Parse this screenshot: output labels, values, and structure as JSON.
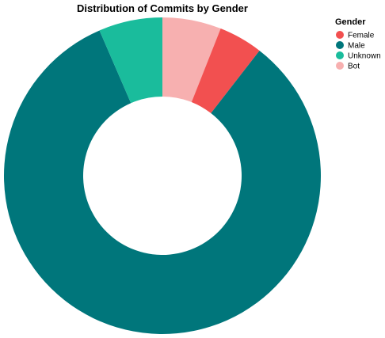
{
  "chart_data": {
    "type": "pie",
    "donut": true,
    "title": "Distribution of Commits by Gender",
    "legend": {
      "title": "Gender",
      "placement": "top-right"
    },
    "categories": [
      "Female",
      "Male",
      "Unknown",
      "Bot"
    ],
    "values": [
      4.5,
      83,
      6.5,
      6
    ],
    "colors": [
      "#f25050",
      "#00767b",
      "#1abc9c",
      "#f7b0b0"
    ],
    "slice_order": [
      "Bot",
      "Female",
      "Male",
      "Unknown"
    ]
  }
}
